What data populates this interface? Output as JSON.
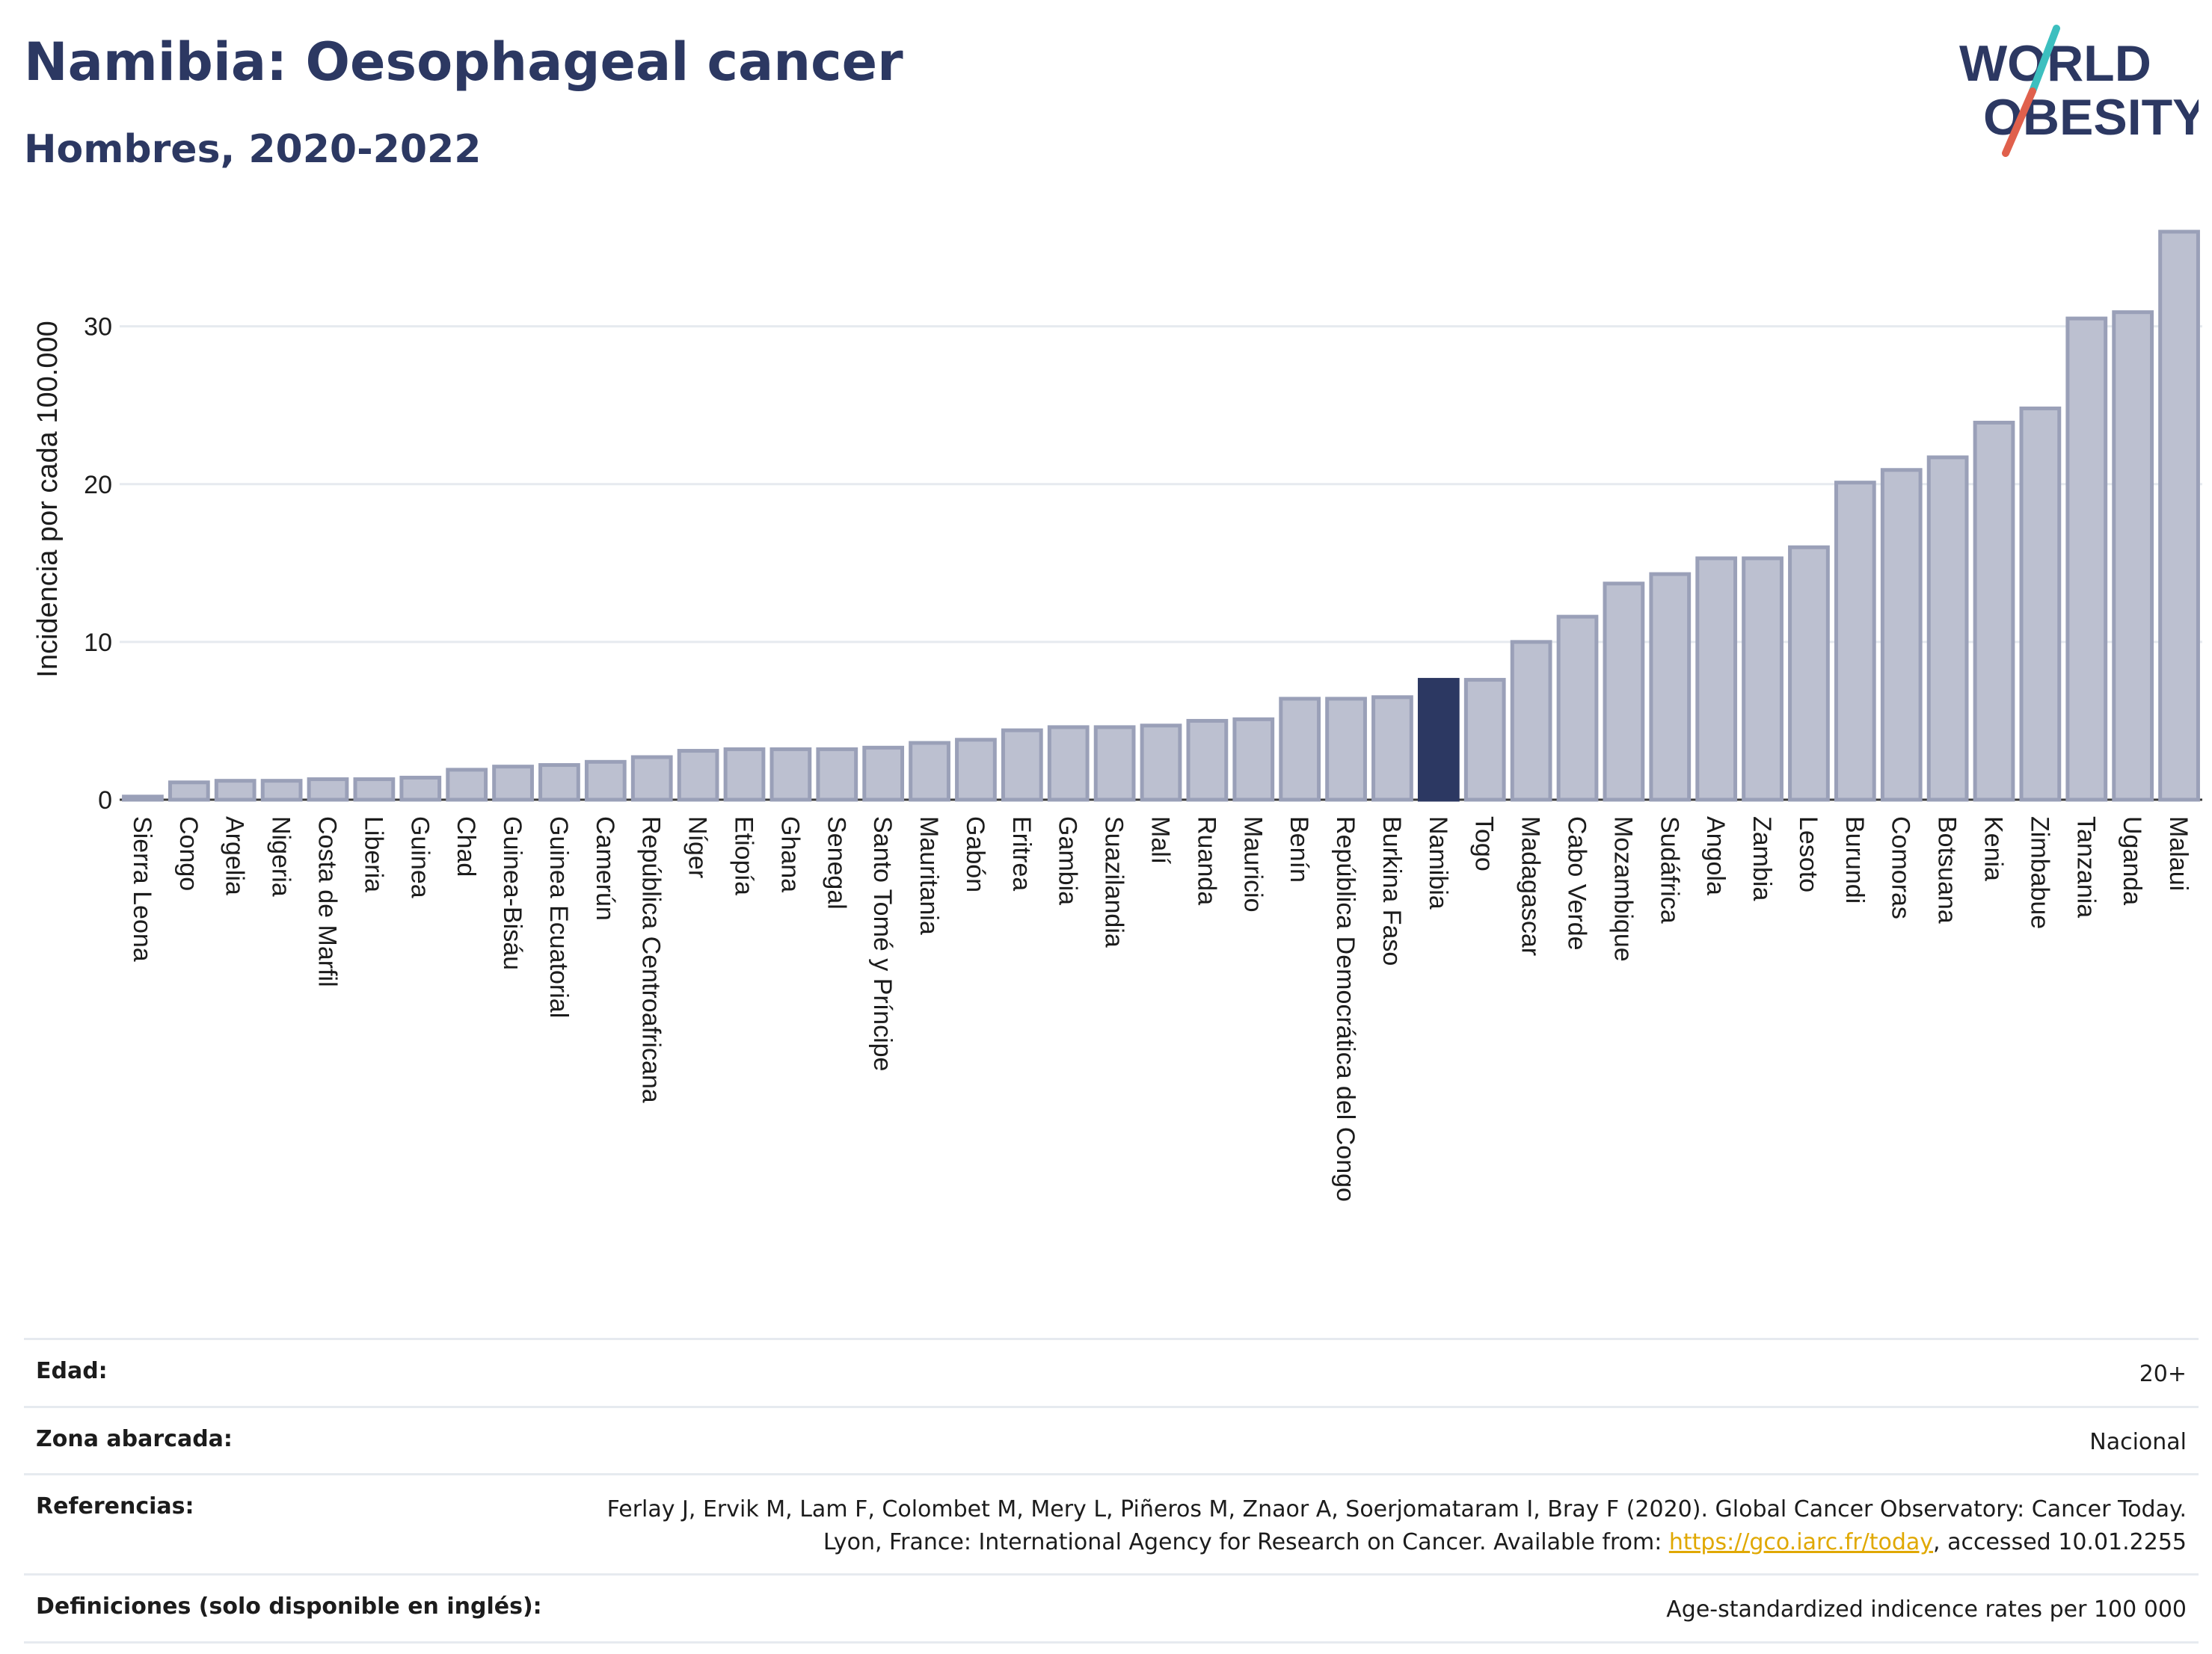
{
  "header": {
    "title": "Namibia: Oesophageal cancer",
    "subtitle": "Hombres, 2020-2022"
  },
  "logo": {
    "line1": "WORLD",
    "line2": "OBESITY"
  },
  "colors": {
    "title": "#2c3862",
    "bar": "#bcc0d0",
    "bar_stroke": "#9aa0b8",
    "highlight": "#2c3862",
    "grid": "#e6eaef",
    "link": "#e0a800",
    "logo_teal": "#3cbfbf",
    "logo_red": "#e0604c"
  },
  "chart_data": {
    "type": "bar",
    "ylabel": "Incidencia por cada 100.000",
    "xlabel": "",
    "ylim": [
      0,
      36
    ],
    "yticks": [
      0,
      10,
      20,
      30
    ],
    "grid": true,
    "highlight": "Namibia",
    "categories": [
      "Sierra Leona",
      "Congo",
      "Argelia",
      "Nigeria",
      "Costa de Marfil",
      "Liberia",
      "Guinea",
      "Chad",
      "Guinea-Bisáu",
      "Guinea Ecuatorial",
      "Camerún",
      "República Centroafricana",
      "Níger",
      "Etiopía",
      "Ghana",
      "Senegal",
      "Santo Tomé y Príncipe",
      "Mauritania",
      "Gabón",
      "Eritrea",
      "Gambia",
      "Suazilandia",
      "Malí",
      "Ruanda",
      "Mauricio",
      "Benín",
      "República Democrática del Congo",
      "Burkina Faso",
      "Namibia",
      "Togo",
      "Madagascar",
      "Cabo Verde",
      "Mozambique",
      "Sudáfrica",
      "Angola",
      "Zambia",
      "Lesoto",
      "Burundi",
      "Comoras",
      "Botsuana",
      "Kenia",
      "Zimbabue",
      "Tanzania",
      "Uganda",
      "Malaui"
    ],
    "values": [
      0.2,
      1.1,
      1.2,
      1.2,
      1.3,
      1.3,
      1.4,
      1.9,
      2.1,
      2.2,
      2.4,
      2.7,
      3.1,
      3.2,
      3.2,
      3.2,
      3.3,
      3.6,
      3.8,
      4.4,
      4.6,
      4.6,
      4.7,
      5.0,
      5.1,
      6.4,
      6.4,
      6.5,
      7.6,
      7.6,
      10.0,
      11.6,
      13.7,
      14.3,
      15.3,
      15.3,
      16.0,
      20.1,
      20.9,
      21.7,
      23.9,
      24.8,
      30.5,
      30.9,
      36.0
    ]
  },
  "info": {
    "age": {
      "label": "Edad:",
      "value": "20+"
    },
    "area": {
      "label": "Zona abarcada:",
      "value": "Nacional"
    },
    "refs": {
      "label": "Referencias:",
      "text1": "Ferlay J, Ervik M, Lam F, Colombet M, Mery L, Piñeros M, Znaor A, Soerjomataram I, Bray F (2020). Global Cancer Observatory: Cancer Today. Lyon, France: International Agency for Research on Cancer. Available from: ",
      "link": "https://gco.iarc.fr/today",
      "text2": ", accessed 10.01.2255"
    },
    "defs": {
      "label": "Definiciones (solo disponible en inglés):",
      "value": "Age-standardized indicence rates per 100 000"
    }
  }
}
